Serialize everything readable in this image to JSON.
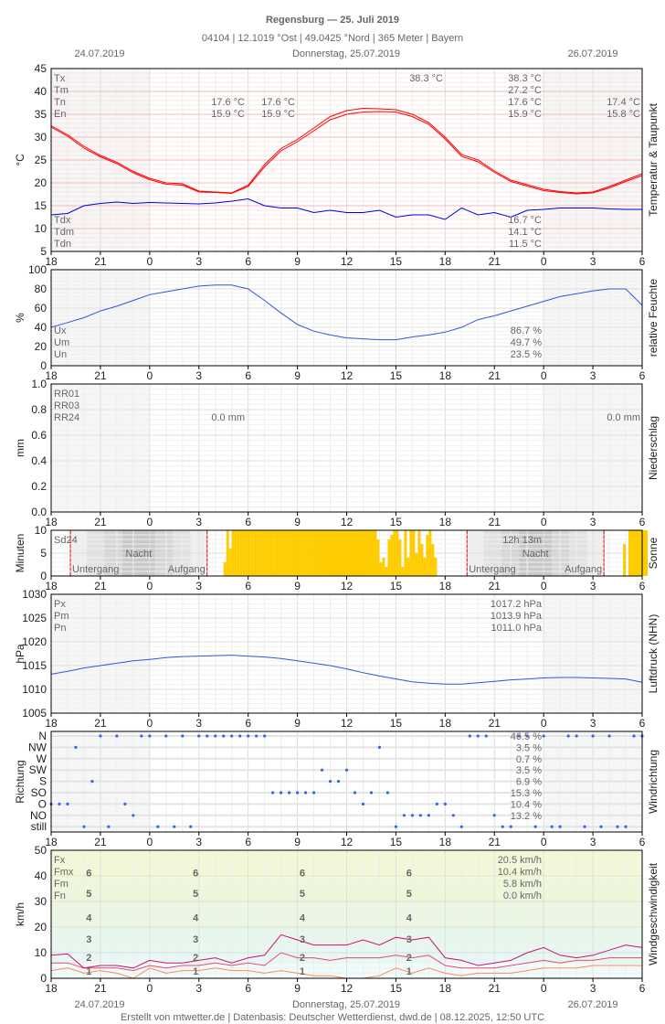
{
  "header": {
    "title": "Regensburg  —  25. Juli 2019",
    "subtitle": "04104  |  12.1019 °Ost  |  49.0425 °Nord  |  365 Meter  |  Bayern",
    "date_left": "24.07.2019",
    "date_center": "Donnerstag, 25.07.2019",
    "date_right": "26.07.2019"
  },
  "footer": "Erstellt von mtwetter.de | Datenbasis: Deutscher Wetterdienst, dwd.de | 08.12.2025, 12:50 UTC",
  "x_ticks": [
    "18",
    "21",
    "0",
    "3",
    "6",
    "9",
    "12",
    "15",
    "18",
    "21",
    "0",
    "3",
    "6"
  ],
  "colors": {
    "temperature": "#ff0000",
    "dewpoint": "#0000dd",
    "humidity": "#3355dd",
    "pressure": "#3355dd",
    "sun": "#ffcc00",
    "direction": "#3366ee",
    "Fx": "#d0106e",
    "Fm": "#e84a6a",
    "Fn": "#ff8a50",
    "sunline": "#e00000"
  },
  "chart_data": [
    {
      "id": "temp",
      "type": "line",
      "ylabel": "°C",
      "side_title": "Temperatur & Taupunkt",
      "ylim": [
        5,
        45
      ],
      "yticks": [
        5,
        10,
        15,
        20,
        25,
        30,
        35,
        40,
        45
      ],
      "x_start": "24.07.2019 18:00",
      "x_step_hours": 1,
      "stats_labels": [
        "Tx",
        "Tm",
        "Tn",
        "En"
      ],
      "stats_values": [
        "38.3 °C",
        "27.2 °C",
        "17.6 °C",
        "15.9 °C"
      ],
      "max_marker": "38.3 °C",
      "min_day1": [
        "17.6 °C",
        "15.9 °C"
      ],
      "min_day2": [
        "17.6 °C",
        "15.9 °C"
      ],
      "min_day3": [
        "17.4 °C",
        "15.8 °C"
      ],
      "dew_labels": [
        "Tdx",
        "Tdm",
        "Tdn"
      ],
      "dew_values": [
        "16.7 °C",
        "14.1 °C",
        "11.5 °C"
      ],
      "series": [
        {
          "key": "t1",
          "values": [
            32.5,
            30.5,
            28,
            26,
            24.5,
            22.5,
            21,
            20,
            19.8,
            18.2,
            18,
            17.8,
            19.5,
            24,
            27.5,
            29.5,
            32,
            34.5,
            35.8,
            36.3,
            36.2,
            36,
            35,
            33.2,
            30,
            26.2,
            25,
            22.6,
            20.6,
            19.6,
            18.6,
            18.1,
            17.8,
            18,
            19.2,
            20.6,
            22
          ]
        },
        {
          "key": "t2",
          "values": [
            32.2,
            30.2,
            27.6,
            25.7,
            24.2,
            22.2,
            20.7,
            19.7,
            19.5,
            18,
            17.9,
            17.7,
            19.2,
            23.5,
            27,
            29,
            31.4,
            33.8,
            35,
            35.5,
            35.6,
            35.5,
            34.5,
            32.8,
            29.6,
            25.8,
            24.6,
            22.3,
            20.3,
            19.3,
            18.3,
            17.9,
            17.6,
            17.8,
            18.9,
            20.3,
            21.6
          ]
        },
        {
          "key": "td",
          "values": [
            13,
            13.3,
            15,
            15.5,
            15.8,
            15.5,
            15.7,
            15.6,
            15.5,
            15.4,
            15.6,
            16,
            16.5,
            15,
            14.5,
            14.5,
            13.5,
            14,
            13.5,
            13.5,
            14,
            12.5,
            13,
            13,
            12,
            14.5,
            13,
            13.5,
            12.5,
            14,
            14.2,
            14.5,
            14.5,
            14.5,
            14.3,
            14.2,
            14.2
          ]
        }
      ]
    },
    {
      "id": "hum",
      "type": "line",
      "ylabel": "%",
      "side_title": "relative Feuchte",
      "ylim": [
        0,
        100
      ],
      "yticks": [
        0,
        20,
        40,
        60,
        80,
        100
      ],
      "stats_labels": [
        "Ux",
        "Um",
        "Un"
      ],
      "stats_values": [
        "86.7 %",
        "49.7 %",
        "23.5 %"
      ],
      "series": [
        {
          "key": "rh",
          "values": [
            40,
            45,
            50,
            57,
            62,
            68,
            74,
            77,
            80,
            83,
            84,
            84,
            80,
            68,
            55,
            43,
            36,
            32,
            29,
            28,
            27,
            27,
            30,
            32,
            35,
            40,
            48,
            52,
            57,
            62,
            67,
            72,
            75,
            78,
            80,
            80,
            63
          ]
        }
      ]
    },
    {
      "id": "rain",
      "type": "bar",
      "ylabel": "mm",
      "side_title": "Niederschlag",
      "ylim": [
        0,
        1.0
      ],
      "yticks": [
        0.0,
        0.2,
        0.4,
        0.6,
        0.8,
        1.0
      ],
      "stats_labels": [
        "RR01",
        "RR03",
        "RR24"
      ],
      "day2_value": "0.0 mm",
      "day3_value": "0.0 mm",
      "values": []
    },
    {
      "id": "sun",
      "type": "bar",
      "ylabel": "Minuten",
      "side_title": "Sonne",
      "ylim": [
        0,
        10
      ],
      "yticks": [
        0,
        5,
        10
      ],
      "stats_labels": [
        "Sd24"
      ],
      "total": "12h 13m",
      "night_label": "Nacht",
      "sunset_label": "Untergang",
      "sunrise_label": "Aufgang",
      "sunset": [
        "19:10",
        "19:20"
      ],
      "sunrise": [
        "03:30",
        "03:40"
      ],
      "interval_minutes": 10,
      "day2_start": "25.07.2019 04:30",
      "day2_values": [
        3,
        10,
        6,
        10,
        10,
        10,
        10,
        10,
        10,
        10,
        10,
        10,
        10,
        10,
        10,
        10,
        10,
        10,
        10,
        10,
        10,
        10,
        10,
        10,
        10,
        10,
        10,
        10,
        10,
        10,
        10,
        10,
        10,
        10,
        10,
        10,
        10,
        10,
        10,
        10,
        10,
        10,
        10,
        10,
        10,
        10,
        10,
        10,
        10,
        10,
        10,
        10,
        10,
        10,
        10,
        10,
        8,
        3,
        4,
        2,
        8,
        9,
        10,
        10,
        8,
        2,
        10,
        4,
        10,
        10,
        5,
        10,
        7,
        4,
        9,
        10,
        7,
        4,
        0,
        0,
        0
      ],
      "day3_start": "26.07.2019 04:50",
      "day3_values": [
        7,
        0,
        10,
        10,
        10,
        10,
        10,
        10,
        10
      ]
    },
    {
      "id": "pres",
      "type": "line",
      "ylabel": "hPa",
      "side_title": "Luftdruck (NHN)",
      "ylim": [
        1005,
        1030
      ],
      "yticks": [
        1005,
        1010,
        1015,
        1020,
        1025,
        1030
      ],
      "stats_labels": [
        "Px",
        "Pm",
        "Pn"
      ],
      "stats_values": [
        "1017.2 hPa",
        "1013.9 hPa",
        "1011.0 hPa"
      ],
      "series": [
        {
          "key": "p",
          "values": [
            1013.2,
            1013.8,
            1014.5,
            1015,
            1015.5,
            1016,
            1016.3,
            1016.7,
            1016.9,
            1017,
            1017.1,
            1017.2,
            1017,
            1016.8,
            1016.5,
            1016,
            1015.5,
            1015,
            1014.3,
            1013.5,
            1012.8,
            1012.2,
            1011.6,
            1011.3,
            1011.1,
            1011.1,
            1011.4,
            1011.7,
            1012,
            1012.2,
            1012.4,
            1012.5,
            1012.5,
            1012.4,
            1012.3,
            1012.2,
            1011.5
          ]
        }
      ]
    },
    {
      "id": "dir",
      "type": "scatter",
      "ylabel": "Richtung",
      "side_title": "Windrichtung",
      "categories": [
        "N",
        "NW",
        "W",
        "SW",
        "S",
        "SO",
        "O",
        "NO",
        "still"
      ],
      "percentages": [
        "46.5 %",
        "3.5 %",
        "0.7 %",
        "3.5 %",
        "6.9 %",
        "15.3 %",
        "10.4 %",
        "13.2 %"
      ],
      "x_step_minutes": 30,
      "values": [
        6,
        6,
        6,
        1,
        8,
        4,
        0,
        8,
        0,
        6,
        7,
        0,
        0,
        8,
        0,
        8,
        0,
        8,
        0,
        0,
        0,
        0,
        0,
        0,
        0,
        0,
        0,
        5,
        5,
        5,
        5,
        5,
        5,
        3,
        4,
        4,
        3,
        5,
        6,
        5,
        1,
        5,
        8,
        7,
        7,
        7,
        7,
        6,
        6,
        7,
        8,
        0,
        0,
        0,
        7,
        8,
        8,
        0,
        0,
        8,
        0,
        8,
        8,
        0,
        0,
        8,
        0,
        8,
        0,
        8,
        8,
        0,
        0
      ]
    },
    {
      "id": "wind",
      "type": "line",
      "ylabel": "km/h",
      "side_title": "Windgeschwindigkeit",
      "ylim": [
        0,
        50
      ],
      "yticks": [
        0,
        10,
        20,
        30,
        40,
        50
      ],
      "stats_labels": [
        "Fx",
        "Fmx",
        "Fm",
        "Fn"
      ],
      "stats_values": [
        "20.5 km/h",
        "10.4 km/h",
        "5.8 km/h",
        "0.0 km/h"
      ],
      "beaufort_labels": [
        "1",
        "2",
        "3",
        "4",
        "5",
        "6"
      ],
      "beaufort_bounds": [
        1,
        6,
        12,
        20,
        29,
        39,
        50
      ],
      "series": [
        {
          "key": "Fx",
          "values": [
            9,
            9.5,
            4,
            5,
            5,
            4,
            7,
            6,
            6,
            7,
            8,
            6,
            8,
            9,
            17,
            15,
            13,
            13,
            13,
            15,
            13,
            16,
            15,
            16,
            8,
            7,
            5,
            6,
            7,
            10,
            12,
            9,
            8,
            9,
            11,
            13,
            12
          ]
        },
        {
          "key": "Fm",
          "values": [
            6,
            6,
            4,
            4,
            4,
            3,
            5,
            4,
            5,
            5,
            6,
            5,
            6,
            5,
            10,
            8,
            8,
            7,
            8,
            8,
            8,
            9,
            8,
            9,
            5,
            4,
            4,
            4,
            5,
            6,
            7,
            6,
            7,
            7,
            8,
            8,
            8
          ]
        },
        {
          "key": "Fn",
          "values": [
            3,
            4,
            2,
            3,
            2,
            0,
            4,
            2,
            3,
            3,
            4,
            3,
            3,
            2,
            3,
            2,
            1,
            1,
            0,
            0,
            1,
            4,
            2,
            4,
            2,
            1,
            2,
            2,
            2,
            3,
            4,
            4,
            4,
            5,
            5,
            5,
            5
          ]
        }
      ]
    }
  ]
}
